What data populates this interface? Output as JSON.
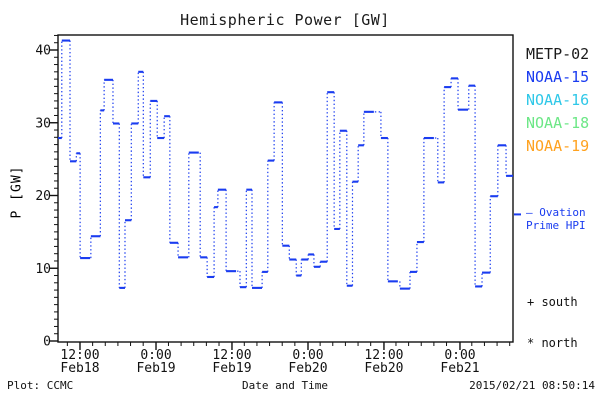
{
  "title": "Hemispheric Power [GW]",
  "y_axis_label": "P [GW]",
  "footer": {
    "left": "Plot: CCMC",
    "center": "Date and Time",
    "right": "2015/02/21 08:50:14"
  },
  "legend": {
    "satellites": [
      {
        "label": "METP-02",
        "color": "#1a1a1a"
      },
      {
        "label": "NOAA-15",
        "color": "#1a3cf0"
      },
      {
        "label": "NOAA-16",
        "color": "#2fc8e8"
      },
      {
        "label": "NOAA-18",
        "color": "#6ce786"
      },
      {
        "label": "NOAA-19",
        "color": "#ffa21f"
      }
    ],
    "ovation": {
      "line1": "– Ovation",
      "line2": "Prime HPI",
      "color": "#1a3cf0"
    },
    "hemisphere_markers": [
      {
        "symbol": "+",
        "label": "south"
      },
      {
        "symbol": "*",
        "label": "north"
      }
    ]
  },
  "chart_data": {
    "type": "line",
    "subtype": "step-dotted",
    "title": "Hemispheric Power [GW]",
    "xlabel": "Date and Time",
    "ylabel": "P [GW]",
    "ylim": [
      0,
      42
    ],
    "yticks": [
      0,
      10,
      20,
      30,
      40
    ],
    "y_minor_step": 1,
    "x_hours_span": 72,
    "x_minor_step_hours": 2,
    "x_major_step_hours": 12,
    "grid": false,
    "legend_position": "right",
    "xticks": [
      {
        "t": 3.48,
        "time": "12:00",
        "date": "Feb18"
      },
      {
        "t": 15.51,
        "time": "0:00",
        "date": "Feb19"
      },
      {
        "t": 27.53,
        "time": "12:00",
        "date": "Feb19"
      },
      {
        "t": 39.56,
        "time": "0:00",
        "date": "Feb20"
      },
      {
        "t": 51.58,
        "time": "12:00",
        "date": "Feb20"
      },
      {
        "t": 63.61,
        "time": "0:00",
        "date": "Feb21"
      }
    ],
    "series": [
      {
        "name": "NOAA-15",
        "color": "#1a3cf0",
        "units": "GW",
        "steps_t_hours_value_gw": [
          [
            0.0,
            27.9
          ],
          [
            0.6,
            41.3
          ],
          [
            1.9,
            24.7
          ],
          [
            2.9,
            25.8
          ],
          [
            3.5,
            11.4
          ],
          [
            5.2,
            14.4
          ],
          [
            6.7,
            31.7
          ],
          [
            7.3,
            35.9
          ],
          [
            8.7,
            29.9
          ],
          [
            9.7,
            7.3
          ],
          [
            10.6,
            16.6
          ],
          [
            11.6,
            29.9
          ],
          [
            12.7,
            37.0
          ],
          [
            13.5,
            22.5
          ],
          [
            14.6,
            33.0
          ],
          [
            15.7,
            27.9
          ],
          [
            16.8,
            30.9
          ],
          [
            17.7,
            13.5
          ],
          [
            19.0,
            11.5
          ],
          [
            20.7,
            25.9
          ],
          [
            22.5,
            11.5
          ],
          [
            23.6,
            8.8
          ],
          [
            24.7,
            18.4
          ],
          [
            25.3,
            20.8
          ],
          [
            26.6,
            9.6
          ],
          [
            28.8,
            7.4
          ],
          [
            29.8,
            20.8
          ],
          [
            30.7,
            7.3
          ],
          [
            32.3,
            9.5
          ],
          [
            33.2,
            24.8
          ],
          [
            34.2,
            32.8
          ],
          [
            35.5,
            13.1
          ],
          [
            36.6,
            11.2
          ],
          [
            37.7,
            9.0
          ],
          [
            38.5,
            11.2
          ],
          [
            39.6,
            11.9
          ],
          [
            40.5,
            10.2
          ],
          [
            41.5,
            10.9
          ],
          [
            42.6,
            34.2
          ],
          [
            43.7,
            15.4
          ],
          [
            44.6,
            28.9
          ],
          [
            45.7,
            7.6
          ],
          [
            46.6,
            21.9
          ],
          [
            47.5,
            26.9
          ],
          [
            48.4,
            31.5
          ],
          [
            51.1,
            27.9
          ],
          [
            52.2,
            8.2
          ],
          [
            54.1,
            7.2
          ],
          [
            55.7,
            9.5
          ],
          [
            56.8,
            13.6
          ],
          [
            57.9,
            27.9
          ],
          [
            60.1,
            21.8
          ],
          [
            61.1,
            34.9
          ],
          [
            62.2,
            36.1
          ],
          [
            63.3,
            31.8
          ],
          [
            65.0,
            35.1
          ],
          [
            66.0,
            7.5
          ],
          [
            67.1,
            9.4
          ],
          [
            68.4,
            19.9
          ],
          [
            69.6,
            26.9
          ],
          [
            70.9,
            22.7
          ]
        ]
      }
    ],
    "ovation_marker_gw": 17.4
  }
}
